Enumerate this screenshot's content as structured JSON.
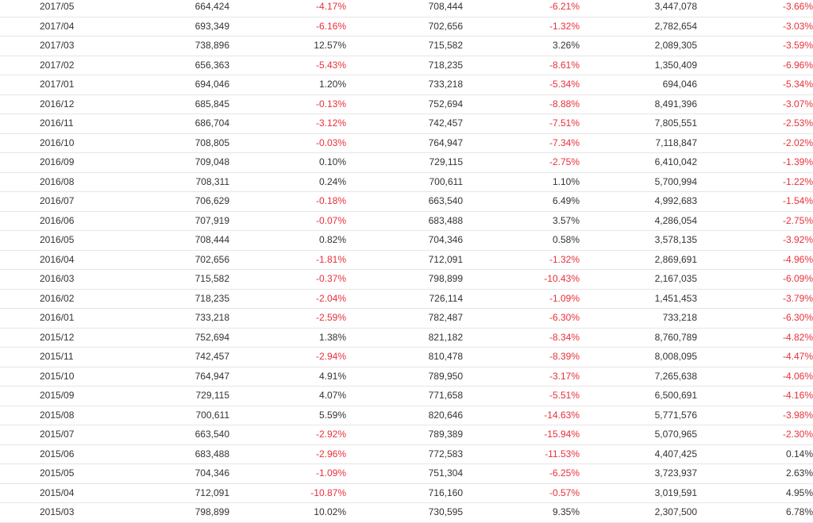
{
  "colors": {
    "text": "#333333",
    "negative": "#e8313a",
    "row_border": "#e6e6e6"
  },
  "rows": [
    [
      "2017/05",
      "664,424",
      "-4.17%",
      "708,444",
      "-6.21%",
      "3,447,078",
      "-3.66%"
    ],
    [
      "2017/04",
      "693,349",
      "-6.16%",
      "702,656",
      "-1.32%",
      "2,782,654",
      "-3.03%"
    ],
    [
      "2017/03",
      "738,896",
      "12.57%",
      "715,582",
      "3.26%",
      "2,089,305",
      "-3.59%"
    ],
    [
      "2017/02",
      "656,363",
      "-5.43%",
      "718,235",
      "-8.61%",
      "1,350,409",
      "-6.96%"
    ],
    [
      "2017/01",
      "694,046",
      "1.20%",
      "733,218",
      "-5.34%",
      "694,046",
      "-5.34%"
    ],
    [
      "2016/12",
      "685,845",
      "-0.13%",
      "752,694",
      "-8.88%",
      "8,491,396",
      "-3.07%"
    ],
    [
      "2016/11",
      "686,704",
      "-3.12%",
      "742,457",
      "-7.51%",
      "7,805,551",
      "-2.53%"
    ],
    [
      "2016/10",
      "708,805",
      "-0.03%",
      "764,947",
      "-7.34%",
      "7,118,847",
      "-2.02%"
    ],
    [
      "2016/09",
      "709,048",
      "0.10%",
      "729,115",
      "-2.75%",
      "6,410,042",
      "-1.39%"
    ],
    [
      "2016/08",
      "708,311",
      "0.24%",
      "700,611",
      "1.10%",
      "5,700,994",
      "-1.22%"
    ],
    [
      "2016/07",
      "706,629",
      "-0.18%",
      "663,540",
      "6.49%",
      "4,992,683",
      "-1.54%"
    ],
    [
      "2016/06",
      "707,919",
      "-0.07%",
      "683,488",
      "3.57%",
      "4,286,054",
      "-2.75%"
    ],
    [
      "2016/05",
      "708,444",
      "0.82%",
      "704,346",
      "0.58%",
      "3,578,135",
      "-3.92%"
    ],
    [
      "2016/04",
      "702,656",
      "-1.81%",
      "712,091",
      "-1.32%",
      "2,869,691",
      "-4.96%"
    ],
    [
      "2016/03",
      "715,582",
      "-0.37%",
      "798,899",
      "-10.43%",
      "2,167,035",
      "-6.09%"
    ],
    [
      "2016/02",
      "718,235",
      "-2.04%",
      "726,114",
      "-1.09%",
      "1,451,453",
      "-3.79%"
    ],
    [
      "2016/01",
      "733,218",
      "-2.59%",
      "782,487",
      "-6.30%",
      "733,218",
      "-6.30%"
    ],
    [
      "2015/12",
      "752,694",
      "1.38%",
      "821,182",
      "-8.34%",
      "8,760,789",
      "-4.82%"
    ],
    [
      "2015/11",
      "742,457",
      "-2.94%",
      "810,478",
      "-8.39%",
      "8,008,095",
      "-4.47%"
    ],
    [
      "2015/10",
      "764,947",
      "4.91%",
      "789,950",
      "-3.17%",
      "7,265,638",
      "-4.06%"
    ],
    [
      "2015/09",
      "729,115",
      "4.07%",
      "771,658",
      "-5.51%",
      "6,500,691",
      "-4.16%"
    ],
    [
      "2015/08",
      "700,611",
      "5.59%",
      "820,646",
      "-14.63%",
      "5,771,576",
      "-3.98%"
    ],
    [
      "2015/07",
      "663,540",
      "-2.92%",
      "789,389",
      "-15.94%",
      "5,070,965",
      "-2.30%"
    ],
    [
      "2015/06",
      "683,488",
      "-2.96%",
      "772,583",
      "-11.53%",
      "4,407,425",
      "0.14%"
    ],
    [
      "2015/05",
      "704,346",
      "-1.09%",
      "751,304",
      "-6.25%",
      "3,723,937",
      "2.63%"
    ],
    [
      "2015/04",
      "712,091",
      "-10.87%",
      "716,160",
      "-0.57%",
      "3,019,591",
      "4.95%"
    ],
    [
      "2015/03",
      "798,899",
      "10.02%",
      "730,595",
      "9.35%",
      "2,307,500",
      "6.78%"
    ]
  ]
}
